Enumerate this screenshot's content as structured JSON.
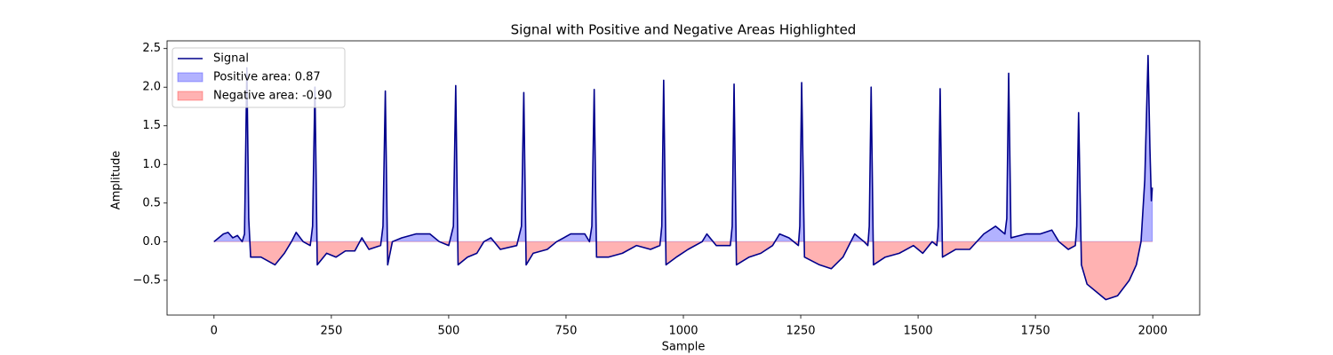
{
  "chart_data": {
    "type": "area-line",
    "title": "Signal with Positive and Negative Areas Highlighted",
    "x_label": "Sample",
    "y_label": "Amplitude",
    "x": [
      0,
      10,
      20,
      30,
      40,
      50,
      60,
      65,
      70,
      74,
      78,
      100,
      130,
      150,
      165,
      175,
      190,
      205,
      210,
      215,
      220,
      240,
      260,
      280,
      300,
      315,
      330,
      355,
      360,
      365,
      370,
      380,
      400,
      430,
      460,
      480,
      500,
      510,
      515,
      520,
      540,
      560,
      575,
      590,
      610,
      645,
      655,
      660,
      665,
      680,
      710,
      730,
      760,
      790,
      800,
      805,
      810,
      815,
      840,
      870,
      900,
      930,
      950,
      954,
      958,
      963,
      985,
      1010,
      1040,
      1050,
      1070,
      1100,
      1104,
      1108,
      1113,
      1140,
      1165,
      1190,
      1205,
      1225,
      1245,
      1248,
      1252,
      1258,
      1290,
      1315,
      1340,
      1365,
      1385,
      1393,
      1396,
      1400,
      1405,
      1430,
      1460,
      1490,
      1510,
      1530,
      1540,
      1543,
      1547,
      1552,
      1580,
      1610,
      1640,
      1665,
      1685,
      1689,
      1693,
      1698,
      1730,
      1760,
      1785,
      1800,
      1820,
      1835,
      1838,
      1842,
      1848,
      1860,
      1880,
      1900,
      1925,
      1950,
      1965,
      1975,
      1983,
      1990,
      1994,
      1997,
      1999
    ],
    "series": [
      {
        "name": "Signal",
        "color": "#00008b",
        "values": [
          0,
          0.05,
          0.1,
          0.12,
          0.05,
          0.08,
          0.0,
          0.1,
          2.25,
          0.3,
          -0.2,
          -0.2,
          -0.3,
          -0.15,
          0.0,
          0.12,
          0.0,
          -0.05,
          0.2,
          2.0,
          -0.3,
          -0.15,
          -0.2,
          -0.12,
          -0.12,
          0.05,
          -0.1,
          -0.05,
          0.2,
          1.95,
          -0.3,
          0.0,
          0.05,
          0.1,
          0.1,
          0.0,
          -0.05,
          0.2,
          2.02,
          -0.3,
          -0.2,
          -0.15,
          0.0,
          0.05,
          -0.1,
          -0.05,
          0.2,
          1.93,
          -0.3,
          -0.15,
          -0.1,
          0.0,
          0.1,
          0.1,
          0.0,
          0.2,
          1.97,
          -0.2,
          -0.2,
          -0.15,
          -0.05,
          -0.1,
          -0.05,
          0.2,
          2.09,
          -0.3,
          -0.2,
          -0.1,
          0.0,
          0.1,
          -0.05,
          -0.05,
          0.2,
          2.04,
          -0.3,
          -0.2,
          -0.15,
          -0.05,
          0.1,
          0.05,
          -0.05,
          0.2,
          2.06,
          -0.2,
          -0.3,
          -0.35,
          -0.2,
          0.1,
          0.0,
          -0.05,
          0.2,
          2.0,
          -0.3,
          -0.2,
          -0.15,
          -0.05,
          -0.15,
          0.0,
          -0.05,
          0.2,
          1.98,
          -0.2,
          -0.1,
          -0.1,
          0.1,
          0.2,
          0.1,
          0.3,
          2.18,
          0.05,
          0.1,
          0.1,
          0.15,
          0.0,
          -0.1,
          -0.05,
          0.2,
          1.67,
          -0.3,
          -0.55,
          -0.65,
          -0.75,
          -0.7,
          -0.5,
          -0.3,
          0.0,
          0.8,
          2.41,
          1.2,
          0.53,
          0.7
        ]
      }
    ],
    "fills": [
      {
        "name": "Positive area: 0.87",
        "color": "#0000ff",
        "alpha": 0.3,
        "side": "positive"
      },
      {
        "name": "Negative area: -0.90",
        "color": "#ff0000",
        "alpha": 0.3,
        "side": "negative"
      }
    ],
    "xlim": [
      -100,
      2100
    ],
    "xticks": [
      0,
      250,
      500,
      750,
      1000,
      1250,
      1500,
      1750,
      2000
    ],
    "ylim": [
      -0.95,
      2.6
    ],
    "yticks": [
      {
        "value": -0.5,
        "label": "−0.5"
      },
      {
        "value": 0,
        "label": "0.0"
      },
      {
        "value": 0.5,
        "label": "0.5"
      },
      {
        "value": 1,
        "label": "1.0"
      },
      {
        "value": 1.5,
        "label": "1.5"
      },
      {
        "value": 2,
        "label": "2.0"
      },
      {
        "value": 2.5,
        "label": "2.5"
      }
    ],
    "legend": "upper left"
  }
}
